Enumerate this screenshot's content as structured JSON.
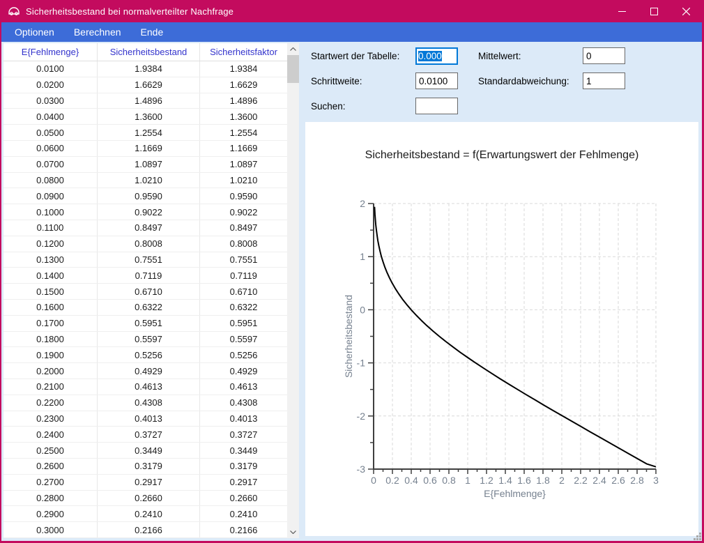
{
  "window": {
    "title": "Sicherheitsbestand bei normalverteilter Nachfrage",
    "controls": {
      "minimize": "minimize",
      "maximize": "maximize",
      "close": "close"
    }
  },
  "menu": {
    "items": [
      "Optionen",
      "Berechnen",
      "Ende"
    ]
  },
  "table": {
    "columns": [
      "E{Fehlmenge}",
      "Sicherheitsbestand",
      "Sicherheitsfaktor"
    ],
    "rows": [
      [
        "0.0100",
        "1.9384",
        "1.9384"
      ],
      [
        "0.0200",
        "1.6629",
        "1.6629"
      ],
      [
        "0.0300",
        "1.4896",
        "1.4896"
      ],
      [
        "0.0400",
        "1.3600",
        "1.3600"
      ],
      [
        "0.0500",
        "1.2554",
        "1.2554"
      ],
      [
        "0.0600",
        "1.1669",
        "1.1669"
      ],
      [
        "0.0700",
        "1.0897",
        "1.0897"
      ],
      [
        "0.0800",
        "1.0210",
        "1.0210"
      ],
      [
        "0.0900",
        "0.9590",
        "0.9590"
      ],
      [
        "0.1000",
        "0.9022",
        "0.9022"
      ],
      [
        "0.1100",
        "0.8497",
        "0.8497"
      ],
      [
        "0.1200",
        "0.8008",
        "0.8008"
      ],
      [
        "0.1300",
        "0.7551",
        "0.7551"
      ],
      [
        "0.1400",
        "0.7119",
        "0.7119"
      ],
      [
        "0.1500",
        "0.6710",
        "0.6710"
      ],
      [
        "0.1600",
        "0.6322",
        "0.6322"
      ],
      [
        "0.1700",
        "0.5951",
        "0.5951"
      ],
      [
        "0.1800",
        "0.5597",
        "0.5597"
      ],
      [
        "0.1900",
        "0.5256",
        "0.5256"
      ],
      [
        "0.2000",
        "0.4929",
        "0.4929"
      ],
      [
        "0.2100",
        "0.4613",
        "0.4613"
      ],
      [
        "0.2200",
        "0.4308",
        "0.4308"
      ],
      [
        "0.2300",
        "0.4013",
        "0.4013"
      ],
      [
        "0.2400",
        "0.3727",
        "0.3727"
      ],
      [
        "0.2500",
        "0.3449",
        "0.3449"
      ],
      [
        "0.2600",
        "0.3179",
        "0.3179"
      ],
      [
        "0.2700",
        "0.2917",
        "0.2917"
      ],
      [
        "0.2800",
        "0.2660",
        "0.2660"
      ],
      [
        "0.2900",
        "0.2410",
        "0.2410"
      ],
      [
        "0.3000",
        "0.2166",
        "0.2166"
      ]
    ]
  },
  "form": {
    "startwert": {
      "label": "Startwert der Tabelle:",
      "value": "0.000",
      "selected": true
    },
    "schrittweite": {
      "label": "Schrittweite:",
      "value": "0.0100"
    },
    "suchen": {
      "label": "Suchen:",
      "value": ""
    },
    "mittelwert": {
      "label": "Mittelwert:",
      "value": "0"
    },
    "stdabw": {
      "label": "Standardabweichung:",
      "value": "1"
    }
  },
  "chart_data": {
    "type": "line",
    "title": "Sicherheitsbestand = f(Erwartungswert der Fehlmenge)",
    "xlabel": "E{Fehlmenge}",
    "ylabel": "Sicherheitsbestand",
    "xlim": [
      0,
      3
    ],
    "ylim": [
      -3,
      2
    ],
    "x_major_step": 0.2,
    "x_minor_step": 0.1,
    "y_major_step": 1,
    "y_minor_step": 0.5,
    "grid": "dashed-major",
    "legend": "none",
    "points": [
      [
        0.01,
        1.9384
      ],
      [
        0.0111,
        1.9
      ],
      [
        0.0143,
        1.8
      ],
      [
        0.0183,
        1.7
      ],
      [
        0.0232,
        1.6
      ],
      [
        0.0293,
        1.5
      ],
      [
        0.0367,
        1.4
      ],
      [
        0.0455,
        1.3
      ],
      [
        0.0561,
        1.2
      ],
      [
        0.0686,
        1.1
      ],
      [
        0.0833,
        1.0
      ],
      [
        0.1004,
        0.9
      ],
      [
        0.1202,
        0.8
      ],
      [
        0.1429,
        0.7
      ],
      [
        0.1687,
        0.6
      ],
      [
        0.1978,
        0.5
      ],
      [
        0.2304,
        0.4
      ],
      [
        0.2668,
        0.3
      ],
      [
        0.3069,
        0.2
      ],
      [
        0.3509,
        0.1
      ],
      [
        0.3989,
        0.0
      ],
      [
        0.4509,
        -0.1
      ],
      [
        0.5069,
        -0.2
      ],
      [
        0.5668,
        -0.3
      ],
      [
        0.6304,
        -0.4
      ],
      [
        0.6978,
        -0.5
      ],
      [
        0.7687,
        -0.6
      ],
      [
        0.8429,
        -0.7
      ],
      [
        0.9202,
        -0.8
      ],
      [
        1.0004,
        -0.9
      ],
      [
        1.0833,
        -1.0
      ],
      [
        1.1686,
        -1.1
      ],
      [
        1.2561,
        -1.2
      ],
      [
        1.3455,
        -1.3
      ],
      [
        1.4367,
        -1.4
      ],
      [
        1.5293,
        -1.5
      ],
      [
        1.6232,
        -1.6
      ],
      [
        1.7183,
        -1.7
      ],
      [
        1.8143,
        -1.8
      ],
      [
        1.9111,
        -1.9
      ],
      [
        2.0085,
        -2.0
      ],
      [
        2.1065,
        -2.1
      ],
      [
        2.2049,
        -2.2
      ],
      [
        2.3037,
        -2.3
      ],
      [
        2.4027,
        -2.4
      ],
      [
        2.502,
        -2.5
      ],
      [
        2.6015,
        -2.6
      ],
      [
        2.7011,
        -2.7
      ],
      [
        2.8008,
        -2.8
      ],
      [
        2.9005,
        -2.9
      ],
      [
        3.0,
        -2.957
      ]
    ]
  },
  "colors": {
    "titlebar": "#C30B5E",
    "menubar": "#3D6CD8",
    "selection": "#0078D7",
    "header_text": "#3333CC",
    "client_bg": "#DCEAF8",
    "tick_label": "#76818F",
    "axis": "#3F3F3F",
    "grid_line": "#D9D9D9",
    "curve": "#000000"
  }
}
